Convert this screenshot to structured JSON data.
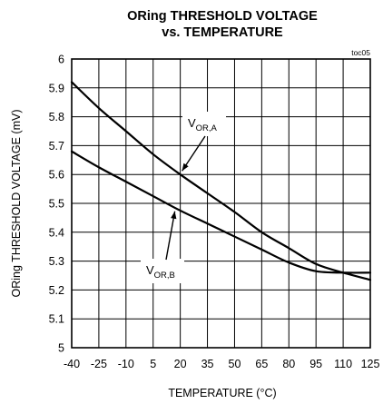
{
  "chart_data": {
    "type": "line",
    "title_line1": "ORing THRESHOLD VOLTAGE",
    "title_line2": "vs. TEMPERATURE",
    "figure_tag": "toc05",
    "xlabel": "TEMPERATURE (°C)",
    "ylabel": "ORing THRESHOLD VOLTAGE (mV)",
    "xlim": [
      -40,
      125
    ],
    "ylim": [
      5,
      6
    ],
    "x_ticks": [
      -40,
      -25,
      -10,
      5,
      20,
      35,
      50,
      65,
      80,
      95,
      110,
      125
    ],
    "y_ticks": [
      5,
      5.1,
      5.2,
      5.3,
      5.4,
      5.5,
      5.6,
      5.7,
      5.8,
      5.9,
      6
    ],
    "grid": true,
    "series": [
      {
        "name": "VOR,A",
        "label_main": "V",
        "label_sub": "OR,A",
        "x": [
          -40,
          -25,
          -10,
          5,
          20,
          35,
          50,
          65,
          80,
          95,
          110,
          125
        ],
        "y": [
          5.92,
          5.83,
          5.75,
          5.67,
          5.6,
          5.535,
          5.47,
          5.4,
          5.345,
          5.29,
          5.26,
          5.235
        ]
      },
      {
        "name": "VOR,B",
        "label_main": "V",
        "label_sub": "OR,B",
        "x": [
          -40,
          -25,
          -10,
          5,
          20,
          35,
          50,
          65,
          80,
          95,
          110,
          125
        ],
        "y": [
          5.68,
          5.625,
          5.575,
          5.525,
          5.475,
          5.43,
          5.385,
          5.34,
          5.295,
          5.265,
          5.26,
          5.26
        ]
      }
    ]
  }
}
